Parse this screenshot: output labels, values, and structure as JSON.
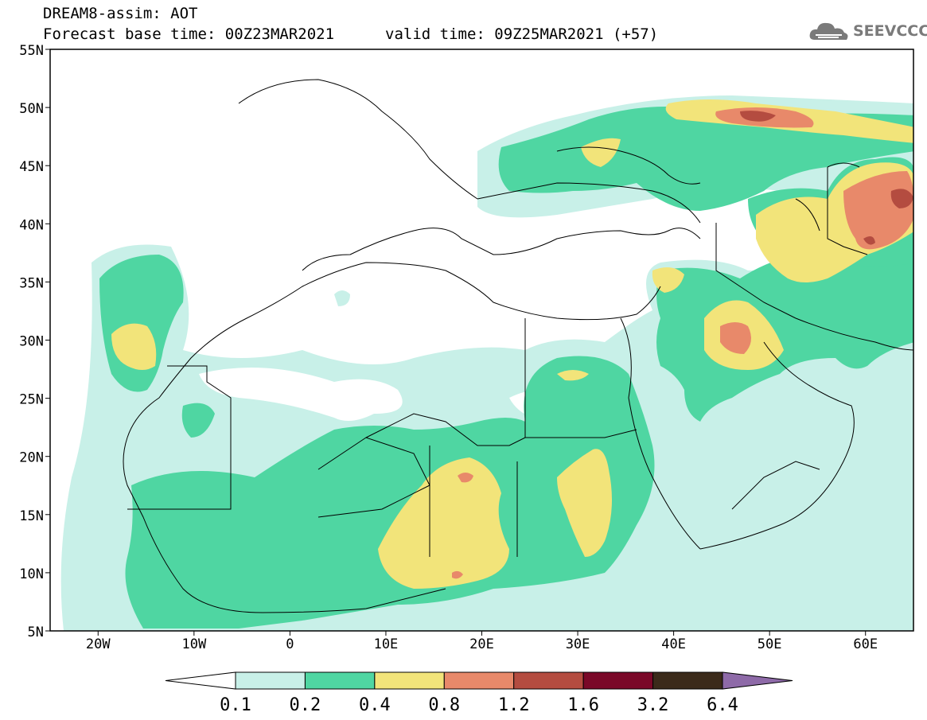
{
  "header": {
    "title": "DREAM8-assim: AOT",
    "base_time": "Forecast base time: 00Z23MAR2021",
    "valid_time": "valid time: 09Z25MAR2021 (+57)"
  },
  "logo": {
    "text": "SEEVCCC",
    "icon": "cloud-icon"
  },
  "map": {
    "lon_range": [
      -25,
      65
    ],
    "lat_range": [
      5,
      55
    ],
    "lat_ticks": [
      {
        "value": 55,
        "label": "55N"
      },
      {
        "value": 50,
        "label": "50N"
      },
      {
        "value": 45,
        "label": "45N"
      },
      {
        "value": 40,
        "label": "40N"
      },
      {
        "value": 35,
        "label": "35N"
      },
      {
        "value": 30,
        "label": "30N"
      },
      {
        "value": 25,
        "label": "25N"
      },
      {
        "value": 20,
        "label": "20N"
      },
      {
        "value": 15,
        "label": "15N"
      },
      {
        "value": 10,
        "label": "10N"
      },
      {
        "value": 5,
        "label": "5N"
      }
    ],
    "lon_ticks": [
      {
        "value": -20,
        "label": "20W"
      },
      {
        "value": -10,
        "label": "10W"
      },
      {
        "value": 0,
        "label": "0"
      },
      {
        "value": 10,
        "label": "10E"
      },
      {
        "value": 20,
        "label": "20E"
      },
      {
        "value": 30,
        "label": "30E"
      },
      {
        "value": 40,
        "label": "40E"
      },
      {
        "value": 50,
        "label": "50E"
      },
      {
        "value": 60,
        "label": "60E"
      }
    ]
  },
  "colorbar": {
    "levels": [
      "0.1",
      "0.2",
      "0.4",
      "0.8",
      "1.2",
      "1.6",
      "3.2",
      "6.4"
    ],
    "colors": [
      "#ffffff",
      "#c8f0e8",
      "#4fd6a2",
      "#f2e47a",
      "#e8896a",
      "#b44c40",
      "#7a0828",
      "#3b2a1a",
      "#8e6aa8"
    ]
  }
}
